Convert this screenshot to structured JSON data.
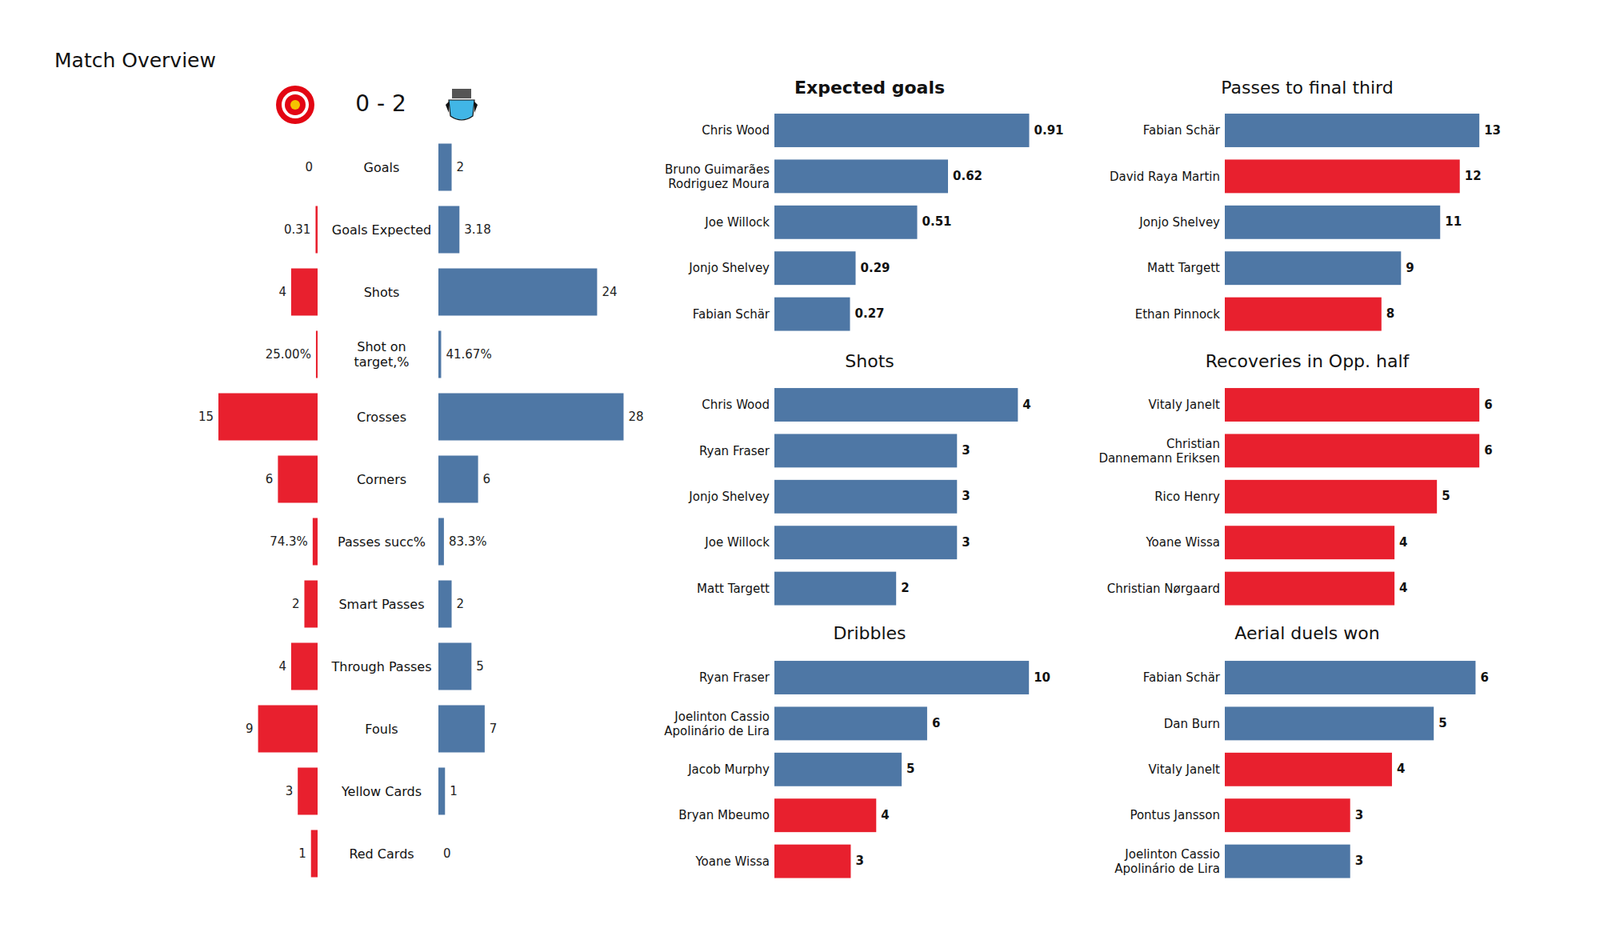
{
  "chart_data": [
    {
      "type": "diverging_bar",
      "title": "Match Overview",
      "subtitle": "0 - 2",
      "orientation": "horizontal",
      "data_labels": true,
      "tick_labels": false,
      "categories": [
        "Goals",
        "Goals Expected",
        "Shots",
        "Shot on\ntarget,%",
        "Crosses",
        "Corners",
        "Passes succ%",
        "Smart Passes",
        "Through Passes",
        "Fouls",
        "Yellow Cards",
        "Red Cards"
      ],
      "xlim": [
        0,
        30
      ],
      "series": [
        {
          "color": "#e8202e",
          "values": [
            0,
            0.31,
            4,
            0.25,
            15,
            6,
            0.743,
            2,
            4,
            9,
            3,
            1
          ],
          "value_labels": [
            "0",
            "0.31",
            "4",
            "25.00%",
            "15",
            "6",
            "74.3%",
            "2",
            "4",
            "9",
            "3",
            "1"
          ]
        },
        {
          "color": "#4e77a5",
          "values": [
            2,
            3.18,
            24,
            0.4167,
            28,
            6,
            0.833,
            2,
            5,
            7,
            1,
            0
          ],
          "value_labels": [
            "2",
            "3.18",
            "24",
            "41.67%",
            "28",
            "6",
            "83.3%",
            "2",
            "5",
            "7",
            "1",
            "0"
          ]
        }
      ]
    },
    {
      "type": "bar",
      "title": "Expected goals",
      "orientation": "horizontal",
      "data_labels": true,
      "tick_labels": false,
      "categories": [
        "Chris Wood",
        "Bruno Guimarães\nRodriguez Moura",
        "Joe Willock",
        "Jonjo Shelvey",
        "Fabian Schär"
      ],
      "values": [
        0.91,
        0.62,
        0.51,
        0.29,
        0.27
      ],
      "xlim": [
        0,
        1.0
      ],
      "colors": [
        "#4e77a5",
        "#4e77a5",
        "#4e77a5",
        "#4e77a5",
        "#4e77a5"
      ]
    },
    {
      "type": "bar",
      "title": "Shots",
      "orientation": "horizontal",
      "data_labels": true,
      "tick_labels": false,
      "categories": [
        "Chris Wood",
        "Ryan Fraser",
        "Jonjo Shelvey",
        "Joe Willock",
        "Matt Targett"
      ],
      "values": [
        4,
        3,
        3,
        3,
        2
      ],
      "xlim": [
        0,
        4.6
      ],
      "colors": [
        "#4e77a5",
        "#4e77a5",
        "#4e77a5",
        "#4e77a5",
        "#4e77a5"
      ]
    },
    {
      "type": "bar",
      "title": "Dribbles",
      "orientation": "horizontal",
      "data_labels": true,
      "tick_labels": false,
      "categories": [
        "Ryan Fraser",
        "Joelinton Cassio\nApolinário de Lira",
        "Jacob Murphy",
        "Bryan Mbeumo",
        "Yoane Wissa"
      ],
      "values": [
        10,
        6,
        5,
        4,
        3
      ],
      "xlim": [
        0,
        11
      ],
      "colors": [
        "#4e77a5",
        "#4e77a5",
        "#4e77a5",
        "#e8202e",
        "#e8202e"
      ]
    },
    {
      "type": "bar",
      "title": "Passes to final third",
      "orientation": "horizontal",
      "data_labels": true,
      "tick_labels": false,
      "categories": [
        "Fabian Schär",
        "David Raya Martin",
        "Jonjo Shelvey",
        "Matt Targett",
        "Ethan Pinnock"
      ],
      "values": [
        13,
        12,
        11,
        9,
        8
      ],
      "xlim": [
        0,
        14.3
      ],
      "colors": [
        "#4e77a5",
        "#e8202e",
        "#4e77a5",
        "#4e77a5",
        "#e8202e"
      ]
    },
    {
      "type": "bar",
      "title": "Recoveries in Opp. half",
      "orientation": "horizontal",
      "data_labels": true,
      "tick_labels": false,
      "categories": [
        "Vitaly Janelt",
        "Christian\nDannemann Eriksen",
        "Rico Henry",
        "Yoane Wissa",
        "Christian Nørgaard"
      ],
      "values": [
        6,
        6,
        5,
        4,
        4
      ],
      "xlim": [
        0,
        6.6
      ],
      "colors": [
        "#e8202e",
        "#e8202e",
        "#e8202e",
        "#e8202e",
        "#e8202e"
      ]
    },
    {
      "type": "bar",
      "title": "Aerial duels won",
      "orientation": "horizontal",
      "data_labels": true,
      "tick_labels": false,
      "categories": [
        "Fabian Schär",
        "Dan Burn",
        "Vitaly Janelt",
        "Pontus Jansson",
        "Joelinton Cassio\nApolinário de Lira"
      ],
      "values": [
        6,
        5,
        4,
        3,
        3
      ],
      "xlim": [
        0,
        6.7
      ],
      "colors": [
        "#4e77a5",
        "#4e77a5",
        "#e8202e",
        "#e8202e",
        "#4e77a5"
      ]
    }
  ]
}
